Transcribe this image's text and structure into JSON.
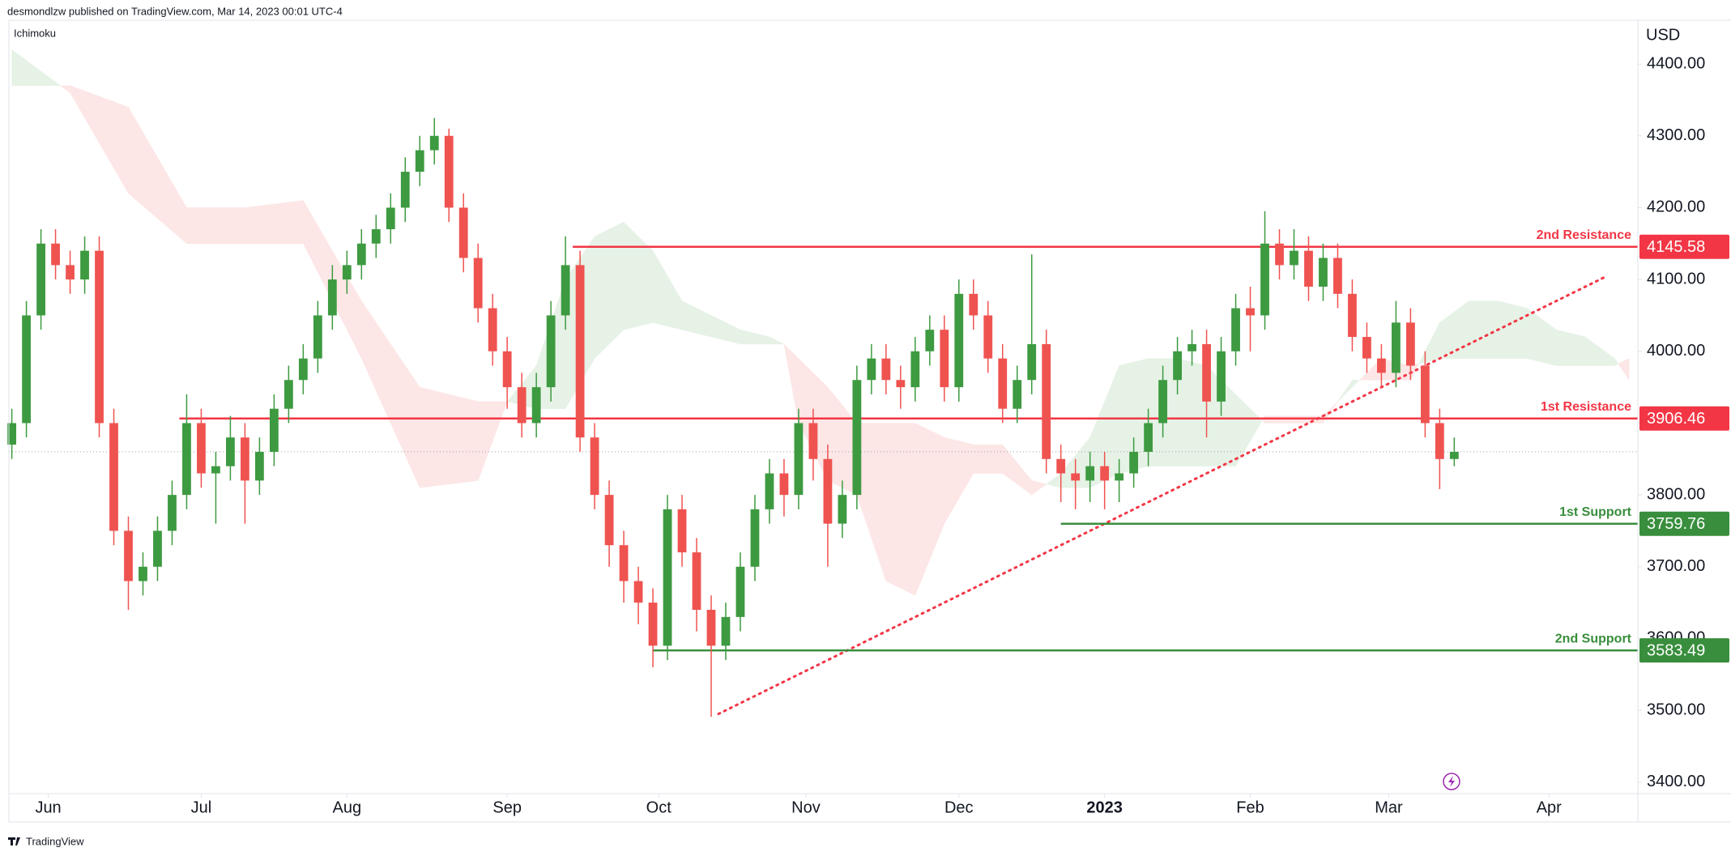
{
  "chart_data": {
    "type": "candlestick",
    "header": "desmondlzw published on TradingView.com, Mar 14, 2023 00:01 UTC-4",
    "indicator": "Ichimoku",
    "currency": "USD",
    "footer": "TradingView",
    "up_color": "#3d9a40",
    "down_color": "#ef5350",
    "open": [
      3870,
      3900,
      4050,
      4150,
      4120,
      4100,
      4140,
      3900,
      3750,
      3680,
      3700,
      3750,
      3800,
      3900,
      3830,
      3840,
      3880,
      3820,
      3860,
      3920,
      3960,
      3990,
      4050,
      4100,
      4120,
      4150,
      4170,
      4200,
      4250,
      4280,
      4300,
      4200,
      4130,
      4060,
      4000,
      3950,
      3900,
      3950,
      4050,
      4120,
      3880,
      3800,
      3730,
      3680,
      3650,
      3590,
      3780,
      3720,
      3640,
      3590,
      3630,
      3700,
      3780,
      3830,
      3800,
      3900,
      3850,
      3760,
      3800,
      3960,
      3990,
      3960,
      3950,
      4000,
      4030,
      3950,
      4080,
      4050,
      3990,
      3920,
      3960,
      4010,
      3850,
      3830,
      3820,
      3840,
      3820,
      3830,
      3860,
      3900,
      3960,
      4000,
      4010,
      3930,
      4000,
      4060,
      4050,
      4150,
      4120,
      4140,
      4090,
      4130,
      4080,
      4020,
      3990,
      3970,
      4040,
      3980,
      3900,
      3850
    ],
    "high": [
      3920,
      4070,
      4170,
      4170,
      4140,
      4160,
      4160,
      3920,
      3770,
      3720,
      3770,
      3820,
      3940,
      3920,
      3860,
      3910,
      3900,
      3880,
      3940,
      3980,
      4010,
      4070,
      4120,
      4140,
      4170,
      4190,
      4220,
      4270,
      4300,
      4325,
      4310,
      4220,
      4150,
      4080,
      4020,
      3970,
      3970,
      4070,
      4160,
      4140,
      3900,
      3820,
      3750,
      3700,
      3670,
      3800,
      3800,
      3740,
      3660,
      3650,
      3720,
      3800,
      3850,
      3850,
      3920,
      3920,
      3870,
      3820,
      3980,
      4010,
      4010,
      3980,
      4020,
      4050,
      4050,
      4100,
      4100,
      4070,
      4010,
      3980,
      4135,
      4030,
      3870,
      3850,
      3860,
      3860,
      3850,
      3880,
      3920,
      3980,
      4020,
      4030,
      4030,
      4020,
      4080,
      4090,
      4195,
      4170,
      4170,
      4160,
      4150,
      4150,
      4100,
      4040,
      4010,
      4070,
      4060,
      4000,
      3920,
      3880
    ],
    "low": [
      3850,
      3880,
      4030,
      4100,
      4080,
      4080,
      3880,
      3730,
      3640,
      3660,
      3680,
      3730,
      3780,
      3810,
      3760,
      3820,
      3760,
      3800,
      3840,
      3900,
      3940,
      3970,
      4030,
      4080,
      4100,
      4130,
      4150,
      4180,
      4230,
      4260,
      4180,
      4110,
      4040,
      3980,
      3920,
      3880,
      3880,
      3930,
      4030,
      3860,
      3780,
      3700,
      3650,
      3620,
      3560,
      3570,
      3700,
      3610,
      3491,
      3570,
      3610,
      3680,
      3760,
      3770,
      3780,
      3820,
      3700,
      3740,
      3780,
      3940,
      3940,
      3920,
      3930,
      3980,
      3930,
      3930,
      4030,
      3970,
      3900,
      3900,
      3940,
      3830,
      3790,
      3780,
      3790,
      3780,
      3790,
      3810,
      3840,
      3880,
      3940,
      3980,
      3880,
      3910,
      3980,
      4000,
      4030,
      4100,
      4100,
      4070,
      4070,
      4060,
      4000,
      3970,
      3950,
      3950,
      3960,
      3880,
      3808,
      3840
    ],
    "close": [
      3900,
      4050,
      4150,
      4120,
      4100,
      4140,
      3900,
      3750,
      3680,
      3700,
      3750,
      3800,
      3900,
      3830,
      3840,
      3880,
      3820,
      3860,
      3920,
      3960,
      3990,
      4050,
      4100,
      4120,
      4150,
      4170,
      4200,
      4250,
      4280,
      4300,
      4200,
      4130,
      4060,
      4000,
      3950,
      3900,
      3950,
      4050,
      4120,
      3880,
      3800,
      3730,
      3680,
      3650,
      3590,
      3780,
      3720,
      3640,
      3590,
      3630,
      3700,
      3780,
      3830,
      3800,
      3900,
      3850,
      3760,
      3800,
      3960,
      3990,
      3960,
      3950,
      4000,
      4030,
      3950,
      4080,
      4050,
      3990,
      3920,
      3960,
      4010,
      3850,
      3830,
      3820,
      3840,
      3820,
      3830,
      3860,
      3900,
      3960,
      4000,
      4010,
      3930,
      4000,
      4060,
      4050,
      4150,
      4120,
      4140,
      4090,
      4130,
      4080,
      4020,
      3990,
      3970,
      4040,
      3980,
      3900,
      3850,
      3860
    ],
    "xlim": [
      -0.2,
      111.6
    ],
    "xticks": [
      {
        "value": 2.5,
        "label": "Jun"
      },
      {
        "value": 13,
        "label": "Jul"
      },
      {
        "value": 23,
        "label": "Aug"
      },
      {
        "value": 34,
        "label": "Sep"
      },
      {
        "value": 44.4,
        "label": "Oct"
      },
      {
        "value": 54.5,
        "label": "Nov"
      },
      {
        "value": 65,
        "label": "Dec"
      },
      {
        "value": 75,
        "label": "2023"
      },
      {
        "value": 85,
        "label": "Feb"
      },
      {
        "value": 94.5,
        "label": "Mar"
      },
      {
        "value": 105.5,
        "label": "Apr"
      }
    ],
    "ylim": [
      3384,
      4461
    ],
    "yticks": [
      {
        "value": 3400,
        "label": "3400.00"
      },
      {
        "value": 3500,
        "label": "3500.00"
      },
      {
        "value": 3600,
        "label": "3600.00"
      },
      {
        "value": 3700,
        "label": "3700.00"
      },
      {
        "value": 3800,
        "label": "3800.00"
      },
      {
        "value": 3900,
        "label": "3900.00"
      },
      {
        "value": 4000,
        "label": "4000.00"
      },
      {
        "value": 4100,
        "label": "4100.00"
      },
      {
        "value": 4200,
        "label": "4200.00"
      },
      {
        "value": 4300,
        "label": "4300.00"
      },
      {
        "value": 4400,
        "label": "4400.00"
      }
    ],
    "cloud": {
      "up_color": "#e6f2e6",
      "down_color": "#fde6e6",
      "x": [
        0,
        4,
        8,
        12,
        16,
        20,
        24,
        28,
        32,
        34,
        36,
        38,
        40,
        42,
        44,
        46,
        48,
        50,
        52,
        53,
        54,
        56,
        58,
        60,
        62,
        64,
        66,
        68,
        70,
        72,
        74,
        76,
        78,
        80,
        82,
        84,
        86,
        88,
        90,
        92,
        94,
        96,
        98,
        100,
        102,
        104,
        106,
        108,
        110,
        111
      ],
      "span_a": [
        4420,
        4360,
        4220,
        4150,
        4150,
        4150,
        3990,
        3810,
        3820,
        3930,
        3980,
        4100,
        4160,
        4180,
        4140,
        4070,
        4050,
        4030,
        4020,
        4010,
        3900,
        3820,
        3800,
        3680,
        3660,
        3760,
        3830,
        3830,
        3800,
        3830,
        3880,
        3980,
        3990,
        3990,
        3980,
        3940,
        3900,
        3900,
        3900,
        3960,
        3960,
        3960,
        4040,
        4070,
        4070,
        4060,
        4030,
        4020,
        3990,
        3960
      ],
      "span_b": [
        4370,
        4370,
        4340,
        4200,
        4200,
        4210,
        4070,
        3950,
        3930,
        3930,
        3920,
        3920,
        3990,
        4030,
        4040,
        4030,
        4020,
        4010,
        4010,
        4010,
        3990,
        3950,
        3900,
        3900,
        3900,
        3880,
        3870,
        3870,
        3820,
        3810,
        3810,
        3830,
        3840,
        3840,
        3840,
        3840,
        3910,
        3910,
        3910,
        3950,
        3990,
        3980,
        3990,
        3990,
        3990,
        3990,
        3980,
        3980,
        3980,
        3990
      ]
    },
    "levels": [
      {
        "label": "2nd Resistance",
        "value": 4145.58,
        "x_start": 38.5,
        "color": "#f23645"
      },
      {
        "label": "1st Resistance",
        "value": 3906.46,
        "x_start": 11.5,
        "color": "#f23645"
      },
      {
        "label": "1st Support",
        "value": 3759.76,
        "x_start": 72,
        "color": "#388e3c"
      },
      {
        "label": "2nd Support",
        "value": 3583.49,
        "x_start": 44,
        "color": "#388e3c"
      }
    ],
    "trendline": {
      "x": [
        48.5,
        109.5
      ],
      "y": [
        3495,
        4105
      ],
      "color": "#f23645"
    }
  }
}
